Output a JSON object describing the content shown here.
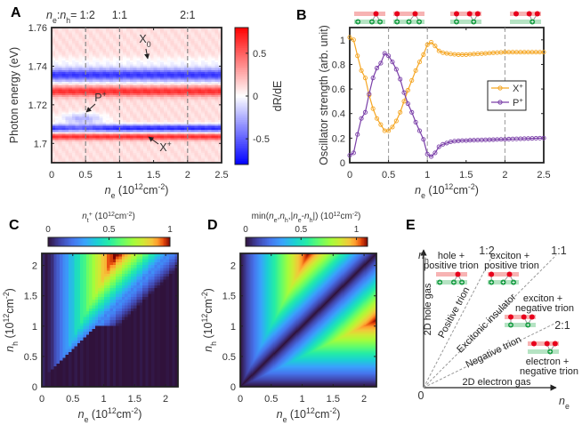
{
  "figure": {
    "panel_labels": [
      "A",
      "B",
      "C",
      "D",
      "E"
    ]
  },
  "chart_data": [
    {
      "panel": "A",
      "type": "heatmap",
      "xlabel": "n_e (10^{12}cm^{-2})",
      "ylabel": "Photon energy (eV)",
      "xlim": [
        0,
        2.5
      ],
      "ylim": [
        1.69,
        1.76
      ],
      "xticks": [
        0,
        0.5,
        1,
        1.5,
        2,
        2.5
      ],
      "xtick_labels": [
        "0",
        "0.5",
        "1",
        "1.5",
        "2",
        "2.5"
      ],
      "yticks": [
        1.7,
        1.72,
        1.74,
        1.76
      ],
      "ytick_labels": [
        "1.7",
        "1.72",
        "1.74",
        "1.76"
      ],
      "colorbar": {
        "label": "dR/dE",
        "range": [
          -0.8,
          0.8
        ],
        "ticks": [
          -0.5,
          0,
          0.5
        ],
        "tick_labels": [
          "-0.5",
          "0",
          "0.5"
        ],
        "colors": [
          "#0000ff",
          "#ffffff",
          "#ff0000"
        ]
      },
      "ratio_lines": {
        "x": [
          0.5,
          1,
          2
        ],
        "prefix": "n_e:n_h= ",
        "labels": [
          "1:2",
          "1:1",
          "2:1"
        ]
      },
      "annotations": [
        "X_0",
        "P^+",
        "X^+"
      ]
    },
    {
      "panel": "B",
      "type": "line",
      "xlabel": "n_e (10^{12}cm^{-2})",
      "ylabel": "Oscillator strength (arb. unit)",
      "xlim": [
        0,
        2.5
      ],
      "ylim": [
        0,
        1.1
      ],
      "xticks": [
        0,
        0.5,
        1,
        1.5,
        2,
        2.5
      ],
      "xtick_labels": [
        "0",
        "0.5",
        "1",
        "1.5",
        "2",
        "2.5"
      ],
      "yticks": [
        0,
        0.2,
        0.4,
        0.6,
        0.8,
        1
      ],
      "ytick_labels": [
        "0",
        "0.2",
        "0.4",
        "0.6",
        "0.8",
        "1"
      ],
      "dashed_lines_x": [
        0.5,
        1,
        2
      ],
      "legend": "right",
      "x": [
        0,
        0.05,
        0.1,
        0.15,
        0.2,
        0.25,
        0.3,
        0.35,
        0.4,
        0.45,
        0.5,
        0.55,
        0.6,
        0.65,
        0.7,
        0.75,
        0.8,
        0.85,
        0.9,
        0.95,
        1.0,
        1.05,
        1.1,
        1.15,
        1.2,
        1.25,
        1.3,
        1.35,
        1.4,
        1.45,
        1.5,
        1.55,
        1.6,
        1.65,
        1.7,
        1.75,
        1.8,
        1.85,
        1.9,
        1.95,
        2.0,
        2.05,
        2.1,
        2.15,
        2.2,
        2.25,
        2.3,
        2.35,
        2.4,
        2.45,
        2.5
      ],
      "series": [
        {
          "name": "X^+",
          "color": "#f5a623",
          "values": [
            1.02,
            1.0,
            0.87,
            0.75,
            0.69,
            0.55,
            0.44,
            0.36,
            0.31,
            0.26,
            0.26,
            0.29,
            0.34,
            0.41,
            0.5,
            0.59,
            0.67,
            0.75,
            0.82,
            0.88,
            0.96,
            0.98,
            0.95,
            0.91,
            0.895,
            0.89,
            0.885,
            0.882,
            0.88,
            0.88,
            0.88,
            0.882,
            0.884,
            0.886,
            0.888,
            0.89,
            0.892,
            0.894,
            0.896,
            0.898,
            0.9,
            0.9,
            0.9,
            0.9,
            0.9,
            0.9,
            0.9,
            0.9,
            0.9,
            0.9,
            0.9
          ]
        },
        {
          "name": "P^+",
          "color": "#7a3fa8",
          "values": [
            0.06,
            0.08,
            0.23,
            0.36,
            0.41,
            0.56,
            0.69,
            0.77,
            0.81,
            0.89,
            0.87,
            0.82,
            0.76,
            0.68,
            0.57,
            0.48,
            0.41,
            0.33,
            0.26,
            0.19,
            0.07,
            0.05,
            0.08,
            0.13,
            0.15,
            0.16,
            0.17,
            0.175,
            0.178,
            0.18,
            0.18,
            0.182,
            0.183,
            0.184,
            0.185,
            0.186,
            0.187,
            0.188,
            0.189,
            0.19,
            0.19,
            0.192,
            0.193,
            0.194,
            0.195,
            0.196,
            0.197,
            0.198,
            0.199,
            0.2,
            0.2
          ]
        }
      ],
      "schematics": [
        "hole + positive trion",
        "exciton + positive trion",
        "exciton + negative trion",
        "electron + negative trion"
      ]
    },
    {
      "panel": "C",
      "type": "heatmap",
      "xlabel": "n_e (10^{12}cm^{-2})",
      "ylabel": "n_h (10^{12}cm^{-2})",
      "xlim": [
        0,
        2.2
      ],
      "ylim": [
        0,
        2.2
      ],
      "xticks": [
        0,
        0.5,
        1,
        1.5,
        2
      ],
      "xtick_labels": [
        "0",
        "0.5",
        "1",
        "1.5",
        "2"
      ],
      "yticks": [
        0,
        0.5,
        1,
        1.5,
        2
      ],
      "ytick_labels": [
        "0",
        "0.5",
        "1",
        "1.5",
        "2"
      ],
      "colorbar": {
        "label": "n_t^+ (10^{12}cm^{-2})",
        "range": [
          0,
          1
        ],
        "ticks": [
          0,
          0.5,
          1
        ],
        "tick_labels": [
          "0",
          "0.5",
          "1"
        ],
        "colormap": "turbo",
        "location": "top"
      }
    },
    {
      "panel": "D",
      "type": "heatmap",
      "xlabel": "n_e (10^{12}cm^{-2})",
      "ylabel": "n_h (10^{12}cm^{-2})",
      "xlim": [
        0,
        2.2
      ],
      "ylim": [
        0,
        2.2
      ],
      "xticks": [
        0,
        0.5,
        1,
        1.5,
        2
      ],
      "xtick_labels": [
        "0",
        "0.5",
        "1",
        "1.5",
        "2"
      ],
      "yticks": [
        0,
        0.5,
        1,
        1.5,
        2
      ],
      "ytick_labels": [
        "0",
        "0.5",
        "1",
        "1.5",
        "2"
      ],
      "colorbar": {
        "label": "min(n_e,n_h,|n_e-n_h|) (10^{12}cm^{-2})",
        "range": [
          0,
          1.1
        ],
        "ticks": [
          0,
          0.5,
          1
        ],
        "tick_labels": [
          "0",
          "0.5",
          "1"
        ],
        "colormap": "turbo",
        "location": "top"
      }
    }
  ],
  "diagram_E": {
    "x_axis": "n_e",
    "y_axis": "n_h",
    "origin": "0",
    "ratios": [
      "1:2",
      "1:1",
      "2:1"
    ],
    "region_labels": {
      "r1": [
        "hole +",
        "positive trion"
      ],
      "r2": [
        "exciton +",
        "positive trion"
      ],
      "r3": [
        "exciton +",
        "negative trion"
      ],
      "r4": [
        "electron +",
        "negative trion"
      ]
    },
    "line_labels": [
      "Positive trion",
      "Excitonic insulator",
      "Negative trion"
    ],
    "axis_labels": [
      "2D hole gas",
      "2D electron gas"
    ],
    "colors": {
      "electron_band": "#f7b3b3",
      "electron": "#e8001c",
      "hole_band": "#b5e3c3",
      "hole": "#1a9e45"
    }
  }
}
